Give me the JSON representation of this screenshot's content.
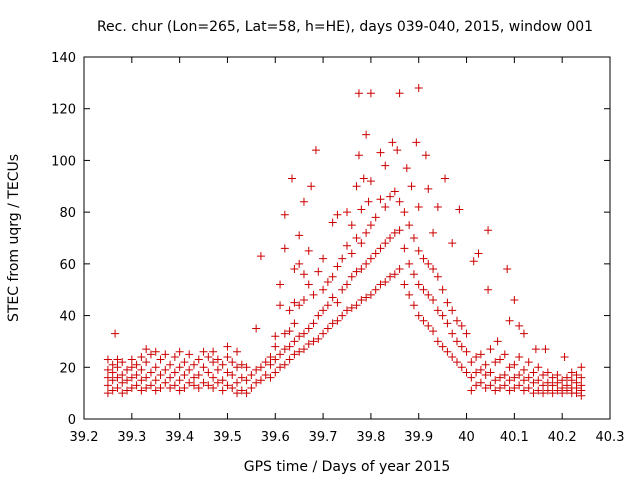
{
  "chart_data": {
    "type": "scatter",
    "title": "Rec. chur (Lon=265, Lat=58, h=HE), days 039-040, 2015, window 001",
    "xlabel": "GPS time / Days of year 2015",
    "ylabel": "STEC from uqrg / TECUs",
    "xlim": [
      39.2,
      40.3
    ],
    "ylim": [
      0,
      140
    ],
    "xticks": [
      "39.2",
      "39.3",
      "39.4",
      "39.5",
      "39.6",
      "39.7",
      "39.8",
      "39.9",
      "40",
      "40.1",
      "40.2",
      "40.3"
    ],
    "yticks": [
      "0",
      "20",
      "40",
      "60",
      "80",
      "100",
      "120",
      "140"
    ],
    "grid": false,
    "legend": "none",
    "marker": "plus",
    "color": "#cc0000",
    "points": [
      [
        39.25,
        10
      ],
      [
        39.25,
        13
      ],
      [
        39.25,
        16
      ],
      [
        39.25,
        19
      ],
      [
        39.25,
        23
      ],
      [
        39.26,
        11
      ],
      [
        39.26,
        15
      ],
      [
        39.26,
        18
      ],
      [
        39.26,
        21
      ],
      [
        39.265,
        33
      ],
      [
        39.27,
        12
      ],
      [
        39.27,
        16
      ],
      [
        39.27,
        20
      ],
      [
        39.27,
        23
      ],
      [
        39.28,
        10
      ],
      [
        39.28,
        14
      ],
      [
        39.28,
        17
      ],
      [
        39.28,
        22
      ],
      [
        39.29,
        11
      ],
      [
        39.29,
        15
      ],
      [
        39.29,
        19
      ],
      [
        39.3,
        12
      ],
      [
        39.3,
        16
      ],
      [
        39.3,
        20
      ],
      [
        39.3,
        23
      ],
      [
        39.31,
        13
      ],
      [
        39.31,
        17
      ],
      [
        39.31,
        21
      ],
      [
        39.32,
        11
      ],
      [
        39.32,
        15
      ],
      [
        39.32,
        19
      ],
      [
        39.32,
        24
      ],
      [
        39.33,
        12
      ],
      [
        39.33,
        16
      ],
      [
        39.33,
        22
      ],
      [
        39.33,
        27
      ],
      [
        39.34,
        13
      ],
      [
        39.34,
        18
      ],
      [
        39.34,
        25
      ],
      [
        39.35,
        11
      ],
      [
        39.35,
        15
      ],
      [
        39.35,
        20
      ],
      [
        39.35,
        26
      ],
      [
        39.36,
        12
      ],
      [
        39.36,
        17
      ],
      [
        39.36,
        23
      ],
      [
        39.37,
        14
      ],
      [
        39.37,
        19
      ],
      [
        39.37,
        25
      ],
      [
        39.38,
        12
      ],
      [
        39.38,
        16
      ],
      [
        39.38,
        21
      ],
      [
        39.39,
        13
      ],
      [
        39.39,
        18
      ],
      [
        39.39,
        24
      ],
      [
        39.4,
        11
      ],
      [
        39.4,
        15
      ],
      [
        39.4,
        20
      ],
      [
        39.4,
        26
      ],
      [
        39.41,
        12
      ],
      [
        39.41,
        17
      ],
      [
        39.41,
        22
      ],
      [
        39.42,
        14
      ],
      [
        39.42,
        19
      ],
      [
        39.42,
        25
      ],
      [
        39.43,
        13
      ],
      [
        39.43,
        16
      ],
      [
        39.43,
        21
      ],
      [
        39.44,
        12
      ],
      [
        39.44,
        17
      ],
      [
        39.44,
        23
      ],
      [
        39.45,
        14
      ],
      [
        39.45,
        20
      ],
      [
        39.45,
        26
      ],
      [
        39.46,
        13
      ],
      [
        39.46,
        18
      ],
      [
        39.46,
        24
      ],
      [
        39.47,
        12
      ],
      [
        39.47,
        16
      ],
      [
        39.47,
        22
      ],
      [
        39.47,
        26
      ],
      [
        39.48,
        14
      ],
      [
        39.48,
        19
      ],
      [
        39.48,
        23
      ],
      [
        39.49,
        11
      ],
      [
        39.49,
        15
      ],
      [
        39.49,
        21
      ],
      [
        39.5,
        13
      ],
      [
        39.5,
        18
      ],
      [
        39.5,
        24
      ],
      [
        39.5,
        28
      ],
      [
        39.51,
        12
      ],
      [
        39.51,
        17
      ],
      [
        39.51,
        22
      ],
      [
        39.52,
        10
      ],
      [
        39.52,
        14
      ],
      [
        39.52,
        20
      ],
      [
        39.52,
        26
      ],
      [
        39.53,
        11
      ],
      [
        39.53,
        16
      ],
      [
        39.53,
        21
      ],
      [
        39.54,
        10
      ],
      [
        39.54,
        15
      ],
      [
        39.54,
        20
      ],
      [
        39.55,
        12
      ],
      [
        39.55,
        17
      ],
      [
        39.56,
        35
      ],
      [
        39.56,
        14
      ],
      [
        39.56,
        19
      ],
      [
        39.57,
        63
      ],
      [
        39.57,
        15
      ],
      [
        39.57,
        20
      ],
      [
        39.58,
        17
      ],
      [
        39.58,
        22
      ],
      [
        39.59,
        16
      ],
      [
        39.59,
        21
      ],
      [
        39.59,
        24
      ],
      [
        39.6,
        18
      ],
      [
        39.6,
        23
      ],
      [
        39.6,
        28
      ],
      [
        39.6,
        32
      ],
      [
        39.61,
        20
      ],
      [
        39.61,
        25
      ],
      [
        39.61,
        44
      ],
      [
        39.61,
        52
      ],
      [
        39.62,
        21
      ],
      [
        39.62,
        27
      ],
      [
        39.62,
        33
      ],
      [
        39.62,
        66
      ],
      [
        39.62,
        79
      ],
      [
        39.63,
        23
      ],
      [
        39.63,
        28
      ],
      [
        39.63,
        34
      ],
      [
        39.63,
        42
      ],
      [
        39.635,
        93
      ],
      [
        39.64,
        25
      ],
      [
        39.64,
        30
      ],
      [
        39.64,
        37
      ],
      [
        39.64,
        45
      ],
      [
        39.64,
        58
      ],
      [
        39.65,
        26
      ],
      [
        39.65,
        32
      ],
      [
        39.65,
        44
      ],
      [
        39.65,
        60
      ],
      [
        39.65,
        71
      ],
      [
        39.66,
        27
      ],
      [
        39.66,
        33
      ],
      [
        39.66,
        46
      ],
      [
        39.66,
        56
      ],
      [
        39.66,
        84
      ],
      [
        39.67,
        29
      ],
      [
        39.67,
        35
      ],
      [
        39.67,
        52
      ],
      [
        39.67,
        65
      ],
      [
        39.675,
        90
      ],
      [
        39.68,
        30
      ],
      [
        39.68,
        37
      ],
      [
        39.68,
        48
      ],
      [
        39.685,
        104
      ],
      [
        39.69,
        31
      ],
      [
        39.69,
        40
      ],
      [
        39.69,
        57
      ],
      [
        39.7,
        33
      ],
      [
        39.7,
        42
      ],
      [
        39.7,
        50
      ],
      [
        39.7,
        62
      ],
      [
        39.71,
        35
      ],
      [
        39.71,
        44
      ],
      [
        39.71,
        53
      ],
      [
        39.72,
        37
      ],
      [
        39.72,
        47
      ],
      [
        39.72,
        55
      ],
      [
        39.72,
        76
      ],
      [
        39.73,
        38
      ],
      [
        39.73,
        45
      ],
      [
        39.73,
        59
      ],
      [
        39.73,
        79
      ],
      [
        39.74,
        40
      ],
      [
        39.74,
        50
      ],
      [
        39.74,
        62
      ],
      [
        39.75,
        42
      ],
      [
        39.75,
        52
      ],
      [
        39.75,
        67
      ],
      [
        39.75,
        80
      ],
      [
        39.76,
        43
      ],
      [
        39.76,
        55
      ],
      [
        39.76,
        64
      ],
      [
        39.76,
        75
      ],
      [
        39.77,
        44
      ],
      [
        39.77,
        57
      ],
      [
        39.77,
        70
      ],
      [
        39.77,
        90
      ],
      [
        39.775,
        102
      ],
      [
        39.775,
        126
      ],
      [
        39.78,
        46
      ],
      [
        39.78,
        58
      ],
      [
        39.78,
        68
      ],
      [
        39.78,
        81
      ],
      [
        39.785,
        93
      ],
      [
        39.79,
        110
      ],
      [
        39.79,
        47
      ],
      [
        39.79,
        60
      ],
      [
        39.79,
        72
      ],
      [
        39.795,
        84
      ],
      [
        39.8,
        48
      ],
      [
        39.8,
        62
      ],
      [
        39.8,
        75
      ],
      [
        39.8,
        92
      ],
      [
        39.8,
        126
      ],
      [
        39.81,
        50
      ],
      [
        39.81,
        64
      ],
      [
        39.81,
        78
      ],
      [
        39.82,
        52
      ],
      [
        39.82,
        66
      ],
      [
        39.82,
        85
      ],
      [
        39.82,
        103
      ],
      [
        39.83,
        53
      ],
      [
        39.83,
        68
      ],
      [
        39.83,
        82
      ],
      [
        39.83,
        98
      ],
      [
        39.84,
        55
      ],
      [
        39.84,
        70
      ],
      [
        39.84,
        86
      ],
      [
        39.845,
        107
      ],
      [
        39.85,
        56
      ],
      [
        39.85,
        72
      ],
      [
        39.85,
        88
      ],
      [
        39.855,
        104
      ],
      [
        39.86,
        58
      ],
      [
        39.86,
        73
      ],
      [
        39.86,
        84
      ],
      [
        39.86,
        126
      ],
      [
        39.87,
        52
      ],
      [
        39.87,
        66
      ],
      [
        39.87,
        80
      ],
      [
        39.875,
        97
      ],
      [
        39.88,
        48
      ],
      [
        39.88,
        60
      ],
      [
        39.88,
        75
      ],
      [
        39.885,
        90
      ],
      [
        39.89,
        44
      ],
      [
        39.89,
        56
      ],
      [
        39.89,
        70
      ],
      [
        39.895,
        107
      ],
      [
        39.9,
        40
      ],
      [
        39.9,
        52
      ],
      [
        39.9,
        65
      ],
      [
        39.9,
        82
      ],
      [
        39.9,
        128
      ],
      [
        39.91,
        38
      ],
      [
        39.91,
        50
      ],
      [
        39.91,
        62
      ],
      [
        39.915,
        102
      ],
      [
        39.92,
        36
      ],
      [
        39.92,
        48
      ],
      [
        39.92,
        60
      ],
      [
        39.92,
        89
      ],
      [
        39.93,
        34
      ],
      [
        39.93,
        46
      ],
      [
        39.93,
        58
      ],
      [
        39.93,
        72
      ],
      [
        39.94,
        30
      ],
      [
        39.94,
        42
      ],
      [
        39.94,
        55
      ],
      [
        39.94,
        82
      ],
      [
        39.95,
        28
      ],
      [
        39.95,
        40
      ],
      [
        39.95,
        50
      ],
      [
        39.955,
        93
      ],
      [
        39.96,
        26
      ],
      [
        39.96,
        37
      ],
      [
        39.96,
        45
      ],
      [
        39.97,
        24
      ],
      [
        39.97,
        33
      ],
      [
        39.97,
        42
      ],
      [
        39.97,
        68
      ],
      [
        39.98,
        22
      ],
      [
        39.98,
        30
      ],
      [
        39.98,
        38
      ],
      [
        39.985,
        81
      ],
      [
        39.99,
        20
      ],
      [
        39.99,
        28
      ],
      [
        39.99,
        36
      ],
      [
        40.0,
        18
      ],
      [
        40.0,
        26
      ],
      [
        40.0,
        33
      ],
      [
        40.01,
        11
      ],
      [
        40.01,
        16
      ],
      [
        40.01,
        22
      ],
      [
        40.015,
        61
      ],
      [
        40.02,
        13
      ],
      [
        40.02,
        18
      ],
      [
        40.02,
        24
      ],
      [
        40.025,
        64
      ],
      [
        40.03,
        14
      ],
      [
        40.03,
        19
      ],
      [
        40.03,
        25
      ],
      [
        40.04,
        12
      ],
      [
        40.04,
        17
      ],
      [
        40.04,
        21
      ],
      [
        40.045,
        73
      ],
      [
        40.045,
        50
      ],
      [
        40.05,
        13
      ],
      [
        40.05,
        18
      ],
      [
        40.05,
        27
      ],
      [
        40.06,
        11
      ],
      [
        40.06,
        15
      ],
      [
        40.06,
        22
      ],
      [
        40.065,
        30
      ],
      [
        40.07,
        12
      ],
      [
        40.07,
        16
      ],
      [
        40.07,
        23
      ],
      [
        40.08,
        13
      ],
      [
        40.08,
        17
      ],
      [
        40.08,
        25
      ],
      [
        40.085,
        58
      ],
      [
        40.09,
        11
      ],
      [
        40.09,
        15
      ],
      [
        40.09,
        20
      ],
      [
        40.09,
        38
      ],
      [
        40.1,
        12
      ],
      [
        40.1,
        16
      ],
      [
        40.1,
        21
      ],
      [
        40.1,
        46
      ],
      [
        40.11,
        13
      ],
      [
        40.11,
        17
      ],
      [
        40.11,
        24
      ],
      [
        40.11,
        36
      ],
      [
        40.12,
        11
      ],
      [
        40.12,
        15
      ],
      [
        40.12,
        19
      ],
      [
        40.12,
        33
      ],
      [
        40.13,
        12
      ],
      [
        40.13,
        16
      ],
      [
        40.13,
        22
      ],
      [
        40.14,
        10
      ],
      [
        40.14,
        14
      ],
      [
        40.14,
        18
      ],
      [
        40.145,
        27
      ],
      [
        40.15,
        11
      ],
      [
        40.15,
        15
      ],
      [
        40.15,
        20
      ],
      [
        40.16,
        10
      ],
      [
        40.16,
        13
      ],
      [
        40.16,
        17
      ],
      [
        40.165,
        27
      ],
      [
        40.17,
        11
      ],
      [
        40.17,
        14
      ],
      [
        40.17,
        18
      ],
      [
        40.18,
        10
      ],
      [
        40.18,
        13
      ],
      [
        40.18,
        16
      ],
      [
        40.19,
        11
      ],
      [
        40.19,
        14
      ],
      [
        40.19,
        17
      ],
      [
        40.2,
        10
      ],
      [
        40.2,
        12
      ],
      [
        40.2,
        15
      ],
      [
        40.205,
        24
      ],
      [
        40.21,
        11
      ],
      [
        40.21,
        13
      ],
      [
        40.21,
        16
      ],
      [
        40.22,
        10
      ],
      [
        40.22,
        12
      ],
      [
        40.22,
        15
      ],
      [
        40.22,
        18
      ],
      [
        40.23,
        10
      ],
      [
        40.23,
        12
      ],
      [
        40.23,
        14
      ],
      [
        40.23,
        17
      ],
      [
        40.24,
        9
      ],
      [
        40.24,
        11
      ],
      [
        40.24,
        13
      ],
      [
        40.24,
        16
      ],
      [
        40.24,
        20
      ]
    ]
  }
}
